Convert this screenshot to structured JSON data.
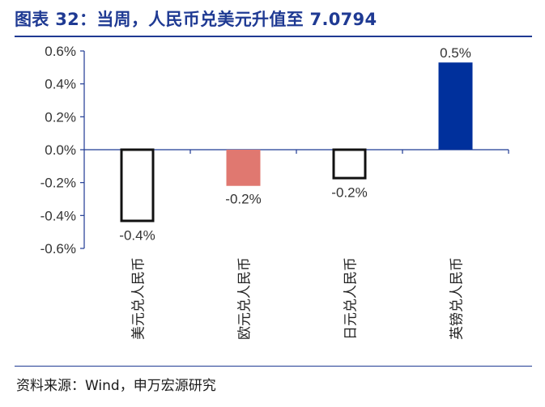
{
  "header": {
    "title": "图表 32：当周，人民币兑美元升值至 7.0794"
  },
  "footer": {
    "source": "资料来源：Wind，申万宏源研究"
  },
  "colors": {
    "title": "#1f3a93",
    "axis": "#1f3a93",
    "bar_outline": "#111111",
    "bar_white_fill": "#ffffff",
    "bar_salmon": "#e07870",
    "bar_navy": "#00309c"
  },
  "chart_data": {
    "type": "bar",
    "title": "",
    "xlabel": "",
    "ylabel": "",
    "categories": [
      "美元兑人民币",
      "欧元兑人民币",
      "日元兑人民币",
      "英镑兑人民币"
    ],
    "values": [
      -0.44,
      -0.22,
      -0.18,
      0.53
    ],
    "data_labels": [
      "-0.4%",
      "-0.2%",
      "-0.2%",
      "0.5%"
    ],
    "bar_styles": [
      "outline",
      "salmon",
      "outline",
      "navy"
    ],
    "ylim": [
      -0.6,
      0.6
    ],
    "yticks": [
      0.6,
      0.4,
      0.2,
      0.0,
      -0.2,
      -0.4,
      -0.6
    ],
    "ytick_labels": [
      "0.6%",
      "0.4%",
      "0.2%",
      "0.0%",
      "-0.2%",
      "-0.4%",
      "-0.6%"
    ],
    "grid": false,
    "legend": "none"
  }
}
